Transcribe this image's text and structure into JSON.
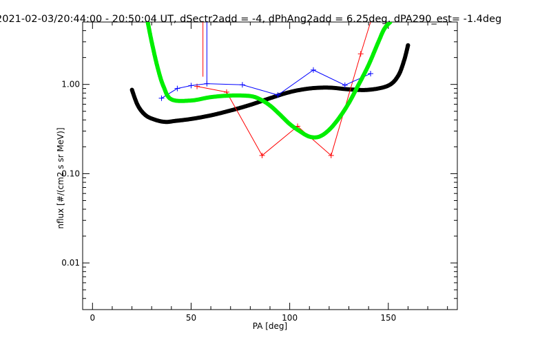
{
  "chart_data": {
    "type": "scatter",
    "title": "2021-02-03/20:44:00 - 20:50:04 UT, dSectr2add = -4, dPhAng2add = 6.25deg, dPA290_est=  -1.4deg",
    "xlabel": "PA [deg]",
    "ylabel": "nflux [#/(cm2 s sr MeV)]",
    "xlim": [
      -5,
      185
    ],
    "ylim": [
      0.003,
      5
    ],
    "yscale": "log",
    "grid": false,
    "x_ticks": [
      0,
      50,
      100,
      150
    ],
    "x_tick_labels": [
      "0",
      "50",
      "100",
      "150"
    ],
    "y_ticks": [
      0.01,
      0.1,
      1.0
    ],
    "y_tick_labels": [
      "0.01",
      "0.10",
      "1.00"
    ],
    "series": [
      {
        "style": "line+plus",
        "color": "#0000ff",
        "x": [
          35,
          43,
          50,
          58,
          76,
          94,
          112,
          128,
          141
        ],
        "y": [
          0.7,
          0.9,
          0.97,
          1.02,
          0.99,
          0.76,
          1.45,
          0.98,
          1.32
        ],
        "spike": {
          "x": 58,
          "y_from": 1.02,
          "y_to": 5
        }
      },
      {
        "style": "line+plus",
        "color": "#ff0000",
        "x": [
          53,
          68,
          86,
          104,
          121,
          136
        ],
        "y": [
          0.95,
          0.82,
          0.16,
          0.34,
          0.16,
          2.2
        ],
        "extend_to": {
          "x": 141,
          "y": 5
        },
        "spike": {
          "x": 56,
          "y_from": 1.22,
          "y_to": 5
        }
      },
      {
        "style": "thick-dotted",
        "color": "#000000",
        "x": [
          20,
          23,
          27,
          32,
          37,
          42,
          50,
          60,
          70,
          80,
          90,
          100,
          110,
          120,
          130,
          140,
          150,
          155,
          158,
          160
        ],
        "y": [
          0.87,
          0.58,
          0.45,
          0.4,
          0.38,
          0.39,
          0.41,
          0.45,
          0.51,
          0.59,
          0.7,
          0.82,
          0.9,
          0.92,
          0.88,
          0.87,
          0.97,
          1.25,
          1.85,
          2.75
        ]
      },
      {
        "style": "thick-dotted",
        "color": "#00ee00",
        "x": [
          28,
          30,
          33,
          36,
          40,
          50,
          60,
          70,
          80,
          85,
          90,
          95,
          100,
          105,
          110,
          115,
          120,
          125,
          130,
          135,
          140,
          145,
          148,
          151
        ],
        "y": [
          5,
          3.0,
          1.55,
          0.95,
          0.68,
          0.66,
          0.72,
          0.75,
          0.74,
          0.68,
          0.58,
          0.46,
          0.36,
          0.3,
          0.26,
          0.26,
          0.31,
          0.42,
          0.62,
          1.0,
          1.65,
          3.0,
          4.2,
          5
        ]
      }
    ]
  }
}
